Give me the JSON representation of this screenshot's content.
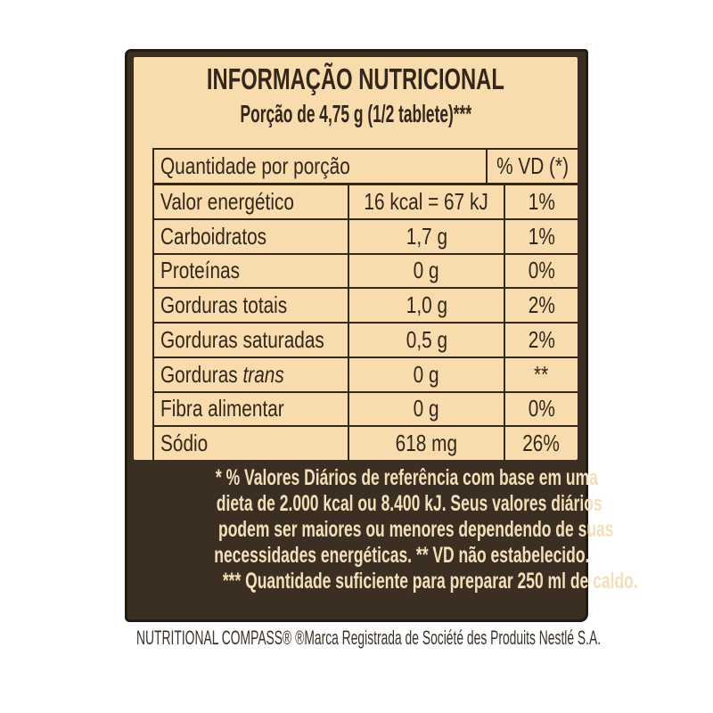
{
  "label": {
    "title": "INFORMAÇÃO NUTRICIONAL",
    "serving": "Porção de 4,75 g (1/2 tablete)***",
    "table": {
      "header": {
        "left": "Quantidade por porção",
        "right": "% VD (*)"
      },
      "rows": [
        {
          "label": "Valor energético",
          "value": "16 kcal = 67 kJ",
          "vd": "1%"
        },
        {
          "label": "Carboidratos",
          "value": "1,7 g",
          "vd": "1%"
        },
        {
          "label": "Proteínas",
          "value": "0 g",
          "vd": "0%"
        },
        {
          "label": "Gorduras totais",
          "value": "1,0 g",
          "vd": "2%"
        },
        {
          "label": "Gorduras saturadas",
          "value": "0,5 g",
          "vd": "2%"
        },
        {
          "label": "Gorduras ",
          "label_italic": "trans",
          "value": "0 g",
          "vd": "**"
        },
        {
          "label": "Fibra alimentar",
          "value": "0 g",
          "vd": "0%"
        },
        {
          "label": "Sódio",
          "value": "618 mg",
          "vd": "26%"
        }
      ]
    },
    "footnotes": {
      "daily_values_lines": [
        "* % Valores Diários de referência com base em uma",
        "dieta de 2.000 kcal ou 8.400 kJ. Seus valores diários",
        "podem ser maiores ou menores dependendo de suas",
        "necessidades energéticas. ** VD não estabelecido."
      ],
      "preparation": "*** Quantidade suficiente para preparar 250 ml de caldo."
    }
  },
  "trademark": "NUTRITIONAL COMPASS® ®Marca Registrada de Société des Produits Nestlé S.A.",
  "colors": {
    "page": "#ffffff",
    "brown": "#3b2e22",
    "outline": "#231a10",
    "cream": "#f8dcae",
    "ink": "#33261a",
    "line": "#33261a",
    "footnote": "#f3e0ba",
    "trademark": "#3b322a"
  }
}
